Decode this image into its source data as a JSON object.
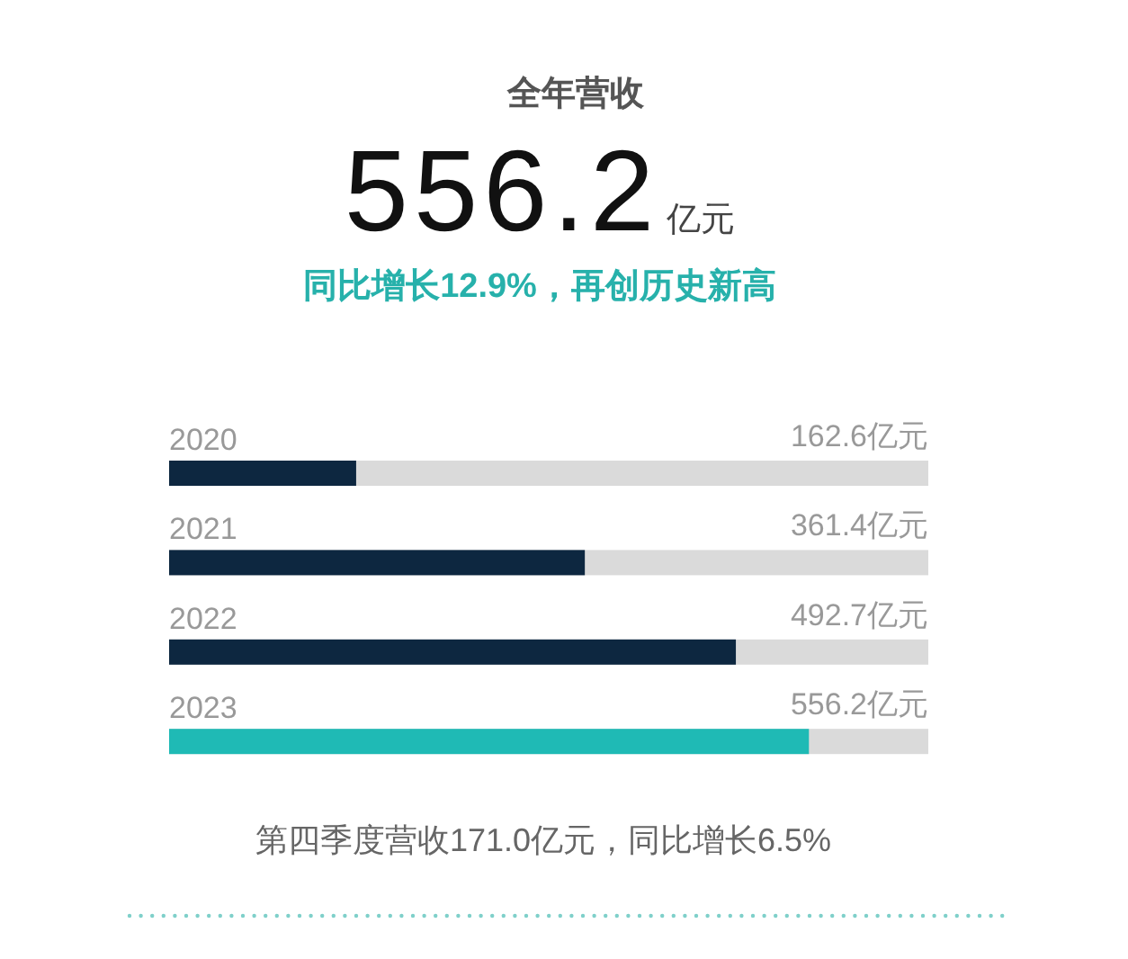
{
  "chart_data": {
    "type": "bar",
    "orientation": "horizontal",
    "title": "全年营收",
    "subtitle": "556.2亿元",
    "annotations": [
      "同比增长12.9%，再创历史新高",
      "第四季度营收171.0亿元，同比增长6.5%"
    ],
    "categories": [
      "2020",
      "2021",
      "2022",
      "2023"
    ],
    "values": [
      162.6,
      361.4,
      492.7,
      556.2
    ],
    "colors": [
      "#0d2740",
      "#0d2740",
      "#0d2740",
      "#1fbab5"
    ],
    "value_labels": [
      "162.6亿元",
      "361.4亿元",
      "492.7亿元",
      "556.2亿元"
    ],
    "xlim": [
      0,
      660
    ],
    "tick_labels": "y"
  }
}
